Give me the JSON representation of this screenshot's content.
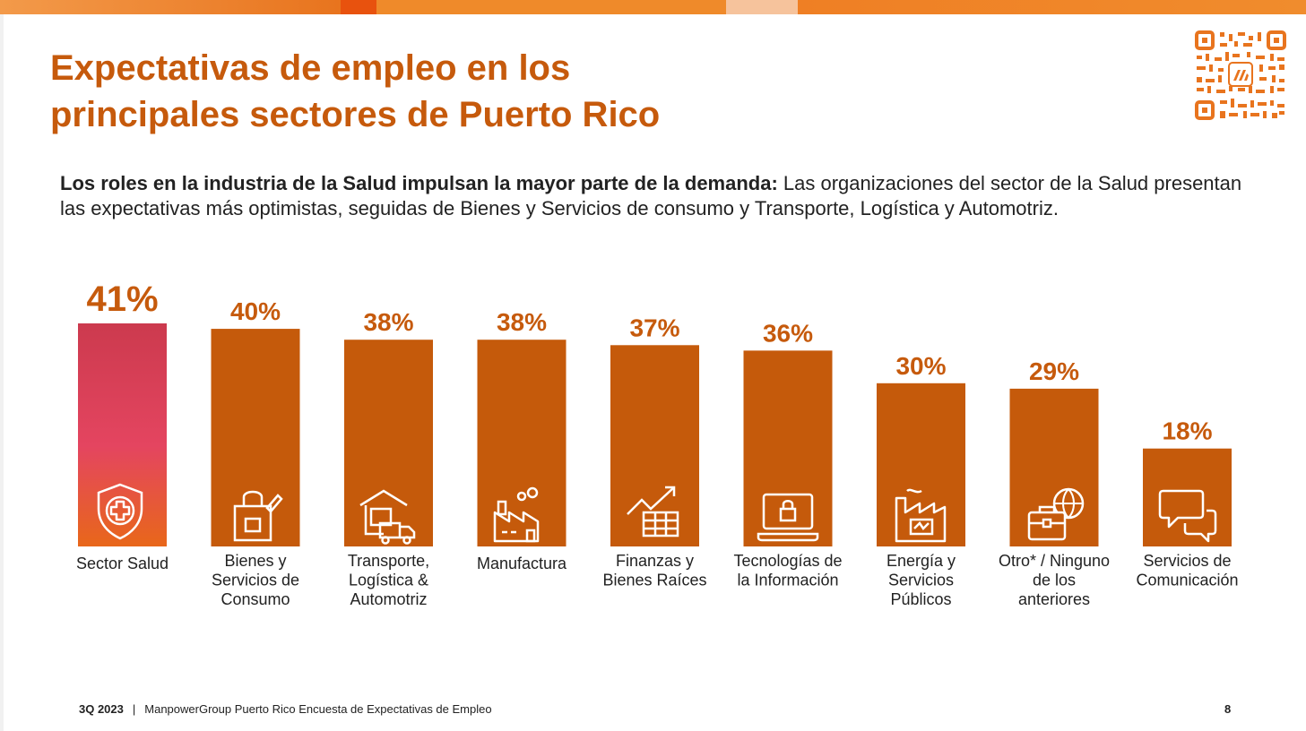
{
  "header": {
    "title_lines": [
      "Expectativas de empleo en los",
      "principales sectores de Puerto Rico"
    ]
  },
  "subtitle": {
    "lead": "Los roles en la industria de la Salud impulsan la mayor parte de la demanda:",
    "text": " Las organizaciones del sector de la Salud presentan las expectativas más optimistas, seguidas de Bienes y Servicios de consumo y Transporte, Logística y Automotriz."
  },
  "chart_data": {
    "type": "bar",
    "categories": [
      [
        "Sector Salud"
      ],
      [
        "Bienes y",
        "Servicios de",
        "Consumo"
      ],
      [
        "Transporte,",
        "Logística &",
        "Automotriz"
      ],
      [
        "Manufactura"
      ],
      [
        "Finanzas y",
        "Bienes Raíces"
      ],
      [
        "Tecnologías de",
        "la Información"
      ],
      [
        "Energía y",
        "Servicios",
        "Públicos"
      ],
      [
        "Otro* / Ninguno",
        "de los",
        "anteriores"
      ],
      [
        "Servicios de",
        "Comunicación"
      ]
    ],
    "values": [
      41,
      40,
      38,
      38,
      37,
      36,
      30,
      29,
      18
    ],
    "labels": [
      "41%",
      "40%",
      "38%",
      "38%",
      "37%",
      "36%",
      "30%",
      "29%",
      "18%"
    ],
    "icons": [
      "shield-cross-icon",
      "shopping-bag-icon",
      "warehouse-truck-icon",
      "factory-icon",
      "finance-chart-icon",
      "laptop-lock-icon",
      "energy-plant-icon",
      "briefcase-globe-icon",
      "chat-bubbles-icon"
    ],
    "colors": {
      "bar": "#c55a0b",
      "highlight_top": "#cc3a4e",
      "highlight_mid": "#e44560",
      "highlight_bottom": "#e8671a",
      "label": "#c65a0c"
    }
  },
  "footer": {
    "period": "3Q 2023",
    "separator": "|",
    "text": "ManpowerGroup Puerto Rico Encuesta de Expectativas de Empleo",
    "page": "8"
  }
}
